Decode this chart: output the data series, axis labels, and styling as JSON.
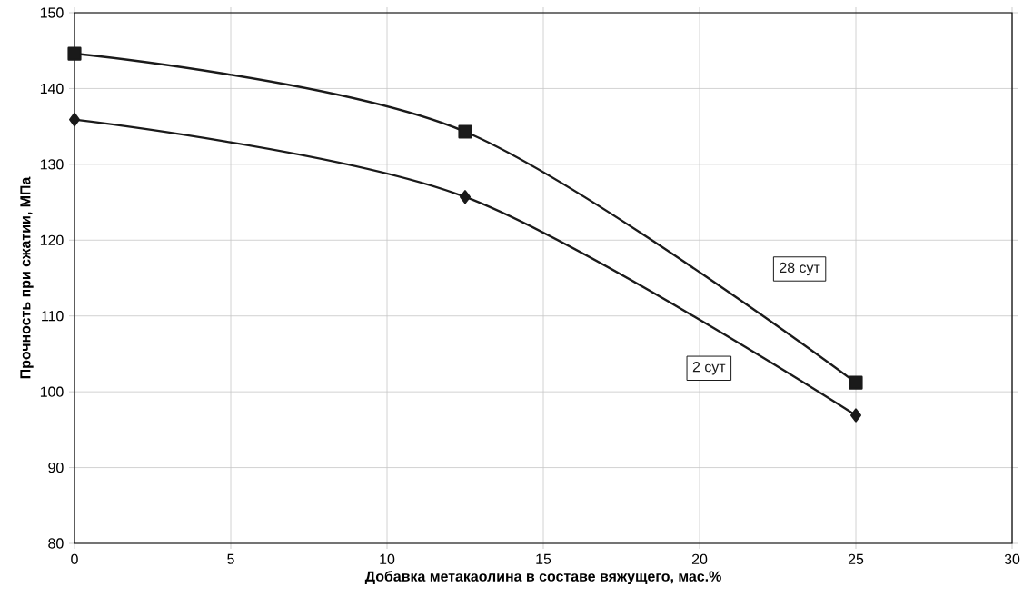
{
  "chart_data": {
    "type": "line",
    "xlabel": "Добавка метакаолина в составе вяжущего, мас.%",
    "ylabel": "Прочность при сжатии, МПа",
    "x": [
      0,
      12.5,
      25
    ],
    "series": [
      {
        "name": "28 сут",
        "color": "#1a1a1a",
        "marker": "square",
        "values": [
          144.6,
          134.3,
          101.2
        ]
      },
      {
        "name": "2 сут",
        "color": "#1a1a1a",
        "marker": "diamond",
        "values": [
          135.9,
          125.7,
          96.9
        ]
      }
    ],
    "xlim": [
      0,
      30
    ],
    "xticks": [
      0,
      5,
      10,
      15,
      20,
      25,
      30
    ],
    "ylim": [
      80,
      150
    ],
    "yticks": [
      80,
      90,
      100,
      110,
      120,
      130,
      140,
      150
    ],
    "grid": true,
    "line_style": "solid"
  }
}
